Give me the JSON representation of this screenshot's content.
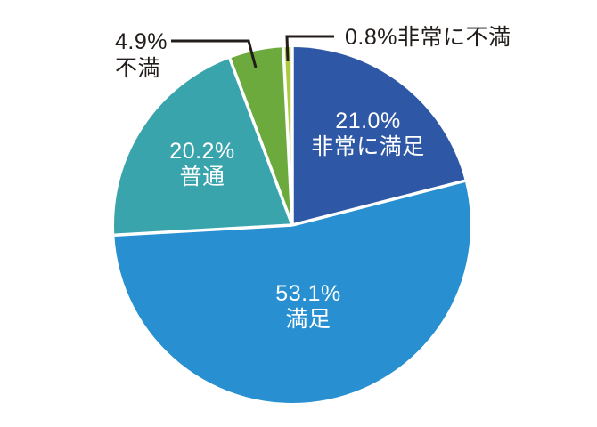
{
  "page": {
    "background_color": "#ffffff"
  },
  "chart_data": {
    "type": "pie",
    "title": "",
    "direction": "clockwise",
    "start_angle": "12-oclock",
    "unit": "%",
    "total": 100.0,
    "categories": [
      "非常に満足",
      "満足",
      "普通",
      "不満",
      "非常に不満"
    ],
    "values": [
      21.0,
      53.1,
      20.2,
      4.9,
      0.8
    ],
    "slices": [
      {
        "key": "very-satisfied",
        "label": "非常に満足",
        "value": 21.0,
        "value_text": "21.0%",
        "color": "#2e57a5",
        "label_color": "#ffffff",
        "label_placement": "inside"
      },
      {
        "key": "satisfied",
        "label": "満足",
        "value": 53.1,
        "value_text": "53.1%",
        "color": "#2890d0",
        "label_color": "#ffffff",
        "label_placement": "inside"
      },
      {
        "key": "neutral",
        "label": "普通",
        "value": 20.2,
        "value_text": "20.2%",
        "color": "#3aa4ac",
        "label_color": "#ffffff",
        "label_placement": "inside"
      },
      {
        "key": "dissatisfied",
        "label": "不満",
        "value": 4.9,
        "value_text": "4.9%",
        "color": "#6caa3d",
        "label_color": "#221d1a",
        "label_placement": "outside-left"
      },
      {
        "key": "very-dissatisfied",
        "label": "非常に不満",
        "value": 0.8,
        "value_text": "0.8%",
        "color": "#abcb3c",
        "label_color": "#221d1a",
        "label_placement": "outside-right"
      }
    ],
    "separator_color": "#ffffff",
    "leader_line_color": "#221d1a",
    "legend": "none",
    "grid": "off"
  }
}
